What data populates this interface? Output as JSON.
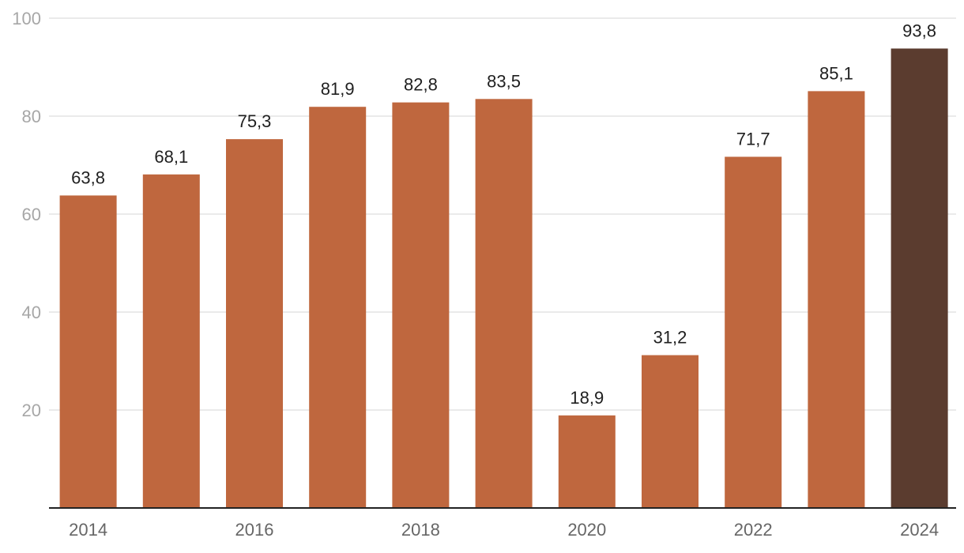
{
  "chart_data": {
    "type": "bar",
    "title": "",
    "xlabel": "",
    "ylabel": "",
    "categories": [
      "2014",
      "2015",
      "2016",
      "2017",
      "2018",
      "2019",
      "2020",
      "2021",
      "2022",
      "2023",
      "2024"
    ],
    "values": [
      63.8,
      68.1,
      75.3,
      81.9,
      82.8,
      83.5,
      18.9,
      31.2,
      71.7,
      85.1,
      93.8
    ],
    "value_labels": [
      "63,8",
      "68,1",
      "75,3",
      "81,9",
      "82,8",
      "83,5",
      "18,9",
      "31,2",
      "71,7",
      "85,1",
      "93,8"
    ],
    "x_tick_labels": [
      "2014",
      "",
      "2016",
      "",
      "2018",
      "",
      "2020",
      "",
      "2022",
      "",
      "2024"
    ],
    "y_ticks": [
      20,
      40,
      60,
      80,
      100
    ],
    "y_tick_labels": [
      "20",
      "40",
      "60",
      "80",
      "100"
    ],
    "ylim": [
      0,
      100
    ],
    "grid": true,
    "legend": "none",
    "highlight_index": 10,
    "colors": {
      "bar": "#bf673e",
      "highlight": "#5b3c2f",
      "grid": "#e3e3e3",
      "baseline": "#222222"
    }
  }
}
